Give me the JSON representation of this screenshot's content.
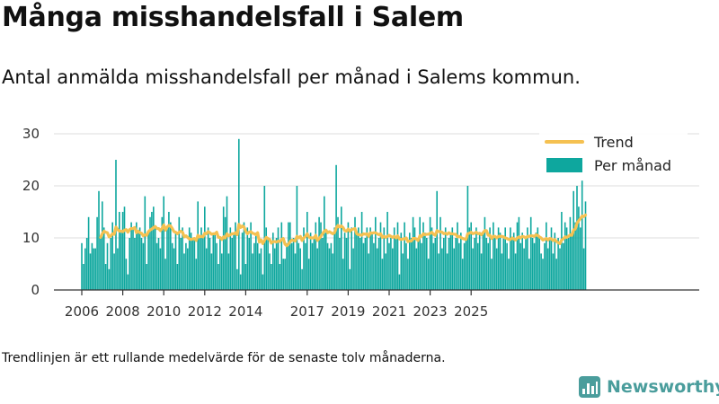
{
  "header": {
    "title": "Många misshandelsfall i Salem",
    "subtitle": "Antal anmälda misshandelsfall per månad i Salems kommun."
  },
  "footer": {
    "note": "Trendlinjen är ett rullande medelvärde för de senaste tolv månaderna.",
    "brand": "Newsworthy",
    "brand_icon": "bar-chart-logo-icon"
  },
  "colors": {
    "bars": "#0ea79e",
    "trend": "#f5c151",
    "grid": "#dddddd",
    "axis": "#333333"
  },
  "chart_data": {
    "type": "bar",
    "title": "",
    "xlabel": "",
    "ylabel": "",
    "ylim": [
      0,
      30
    ],
    "yticks": [
      0,
      10,
      20,
      30
    ],
    "xticks": [
      "2006",
      "2008",
      "2010",
      "2012",
      "2014",
      "2017",
      "2019",
      "2021",
      "2023",
      "2025"
    ],
    "x_start": "2006-01",
    "grid": true,
    "legend_position": "top-right",
    "legend": [
      {
        "label": "Trend",
        "kind": "line"
      },
      {
        "label": "Per månad",
        "kind": "bar"
      }
    ],
    "series": [
      {
        "name": "Per månad",
        "kind": "bar",
        "values": [
          9,
          5,
          8,
          10,
          14,
          7,
          9,
          8,
          8,
          14,
          19,
          10,
          17,
          12,
          5,
          9,
          4,
          10,
          13,
          7,
          25,
          8,
          15,
          11,
          15,
          16,
          6,
          3,
          10,
          13,
          12,
          10,
          13,
          11,
          12,
          10,
          9,
          18,
          5,
          11,
          14,
          15,
          16,
          12,
          9,
          10,
          8,
          14,
          18,
          6,
          12,
          15,
          13,
          9,
          8,
          11,
          5,
          14,
          10,
          12,
          7,
          9,
          8,
          12,
          11,
          10,
          10,
          6,
          17,
          10,
          12,
          10,
          16,
          8,
          12,
          10,
          7,
          11,
          11,
          9,
          5,
          10,
          7,
          16,
          14,
          18,
          7,
          12,
          10,
          11,
          13,
          4,
          29,
          3,
          11,
          13,
          5,
          12,
          10,
          13,
          7,
          9,
          11,
          9,
          7,
          8,
          3,
          20,
          12,
          10,
          7,
          5,
          11,
          8,
          10,
          12,
          5,
          13,
          6,
          6,
          9,
          13,
          13,
          9,
          10,
          7,
          20,
          9,
          8,
          4,
          12,
          9,
          15,
          6,
          11,
          9,
          10,
          13,
          8,
          14,
          13,
          10,
          18,
          11,
          9,
          8,
          9,
          7,
          12,
          24,
          14,
          10,
          16,
          6,
          11,
          10,
          13,
          4,
          12,
          8,
          14,
          11,
          12,
          10,
          15,
          9,
          10,
          12,
          7,
          12,
          11,
          9,
          14,
          8,
          10,
          13,
          6,
          12,
          7,
          15,
          9,
          10,
          8,
          12,
          10,
          13,
          3,
          11,
          7,
          13,
          9,
          6,
          11,
          10,
          14,
          12,
          8,
          10,
          14,
          9,
          13,
          11,
          10,
          6,
          14,
          12,
          9,
          10,
          19,
          7,
          14,
          8,
          10,
          12,
          7,
          10,
          11,
          12,
          8,
          10,
          13,
          9,
          11,
          6,
          9,
          10,
          20,
          12,
          13,
          8,
          10,
          12,
          9,
          11,
          7,
          11,
          14,
          10,
          9,
          12,
          6,
          13,
          10,
          8,
          12,
          11,
          7,
          10,
          12,
          9,
          6,
          12,
          10,
          11,
          7,
          13,
          14,
          9,
          11,
          8,
          10,
          12,
          6,
          14,
          10,
          9,
          11,
          12,
          10,
          7,
          6,
          9,
          13,
          8,
          10,
          12,
          7,
          11,
          6,
          10,
          8,
          15,
          9,
          13,
          12,
          10,
          14,
          11,
          19,
          13,
          20,
          16,
          12,
          21,
          8,
          17
        ],
        "source": "derived"
      },
      {
        "name": "Trend",
        "kind": "line",
        "window": 12,
        "values": [],
        "source": "derived"
      }
    ]
  }
}
